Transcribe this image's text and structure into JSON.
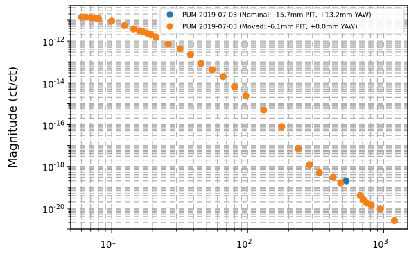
{
  "chart_data": {
    "type": "scatter",
    "title": "",
    "xlabel": "",
    "ylabel": "Magnitude (ct/ct)",
    "xscale": "log",
    "yscale": "log",
    "xlim": [
      5,
      1500
    ],
    "ylim": [
      1e-21,
      5e-11
    ],
    "grid": true,
    "legend_position": "top-right",
    "x_tick_labels": [
      "10^1",
      "10^2",
      "10^3"
    ],
    "y_tick_labels": [
      "10^-12",
      "10^-14",
      "10^-16",
      "10^-18",
      "10^-20"
    ],
    "series": [
      {
        "name": "PUM 2019-07-03 (Nominal: -15.7mm PIT, +13.2mm YAW)",
        "color": "#1f77b4",
        "points": [
          [
            6.0,
            1.4e-11
          ],
          [
            6.5,
            1.4e-11
          ],
          [
            7.0,
            1.35e-11
          ],
          [
            7.5,
            1.3e-11
          ],
          [
            8.0,
            1.2e-11
          ],
          [
            10.0,
            9e-12
          ],
          [
            12.4,
            5.5e-12
          ],
          [
            14.5,
            3.8e-12
          ],
          [
            16.0,
            3.1e-12
          ],
          [
            17.0,
            2.7e-12
          ],
          [
            18.2,
            2.4e-12
          ],
          [
            19.5,
            2e-12
          ],
          [
            21.2,
            1.55e-12
          ],
          [
            26.0,
            7e-13
          ],
          [
            31.8,
            4.2e-13
          ],
          [
            38.0,
            2.2e-13
          ],
          [
            45.5,
            8.5e-14
          ],
          [
            55.0,
            4.2e-14
          ],
          [
            66.0,
            2e-14
          ],
          [
            80.0,
            6.5e-15
          ],
          [
            97.0,
            2.4e-15
          ],
          [
            131.0,
            5e-16
          ],
          [
            178.0,
            8e-17
          ],
          [
            235.0,
            7e-18
          ],
          [
            286.0,
            1.2e-18
          ],
          [
            337.0,
            5e-19
          ],
          [
            424.0,
            3e-19
          ],
          [
            482.0,
            1.6e-19
          ],
          [
            530.0,
            2e-19
          ],
          [
            672.0,
            4e-20
          ],
          [
            710.0,
            2.5e-20
          ],
          [
            748.0,
            1.8e-20
          ],
          [
            810.0,
            1.4e-20
          ],
          [
            945.0,
            9e-21
          ],
          [
            1200.0,
            2.5e-21
          ]
        ]
      },
      {
        "name": "PUM 2019-07-03 (Moved: -6.1mm PIT, +0.0mm YAW)",
        "color": "#ff7f0e",
        "points": [
          [
            6.0,
            1.4e-11
          ],
          [
            6.5,
            1.4e-11
          ],
          [
            7.0,
            1.35e-11
          ],
          [
            7.5,
            1.3e-11
          ],
          [
            8.0,
            1.2e-11
          ],
          [
            10.0,
            9e-12
          ],
          [
            12.4,
            5.5e-12
          ],
          [
            14.5,
            3.8e-12
          ],
          [
            16.0,
            3.1e-12
          ],
          [
            17.0,
            2.7e-12
          ],
          [
            18.2,
            2.4e-12
          ],
          [
            19.5,
            2e-12
          ],
          [
            21.2,
            1.55e-12
          ],
          [
            26.0,
            7e-13
          ],
          [
            31.8,
            4.2e-13
          ],
          [
            38.0,
            2.2e-13
          ],
          [
            45.5,
            8.5e-14
          ],
          [
            55.0,
            4.2e-14
          ],
          [
            66.0,
            2e-14
          ],
          [
            80.0,
            6.5e-15
          ],
          [
            97.0,
            2.4e-15
          ],
          [
            131.0,
            5e-16
          ],
          [
            178.0,
            8e-17
          ],
          [
            235.0,
            7e-18
          ],
          [
            286.0,
            1.2e-18
          ],
          [
            337.0,
            5e-19
          ],
          [
            424.0,
            3e-19
          ],
          [
            482.0,
            1.6e-19
          ],
          [
            672.0,
            4e-20
          ],
          [
            710.0,
            2.5e-20
          ],
          [
            748.0,
            1.8e-20
          ],
          [
            810.0,
            1.4e-20
          ],
          [
            945.0,
            9e-21
          ],
          [
            1200.0,
            2.5e-21
          ]
        ]
      }
    ]
  }
}
